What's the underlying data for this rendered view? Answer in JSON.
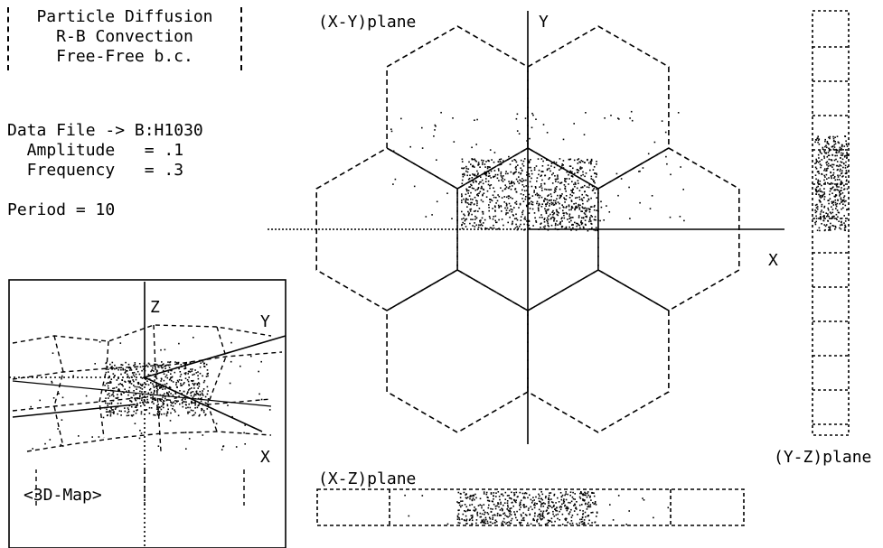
{
  "header": {
    "title": "Particle Diffusion",
    "subtitle": "R-B Convection",
    "boundary": "Free-Free  b.c."
  },
  "info": {
    "data_file": "Data File -> B:H1030",
    "amplitude": "  Amplitude   = .1",
    "frequency": "  Frequency   = .3",
    "period": "Period = 10"
  },
  "panels": {
    "xy_label": "(X-Y)plane",
    "xz_label": "(X-Z)plane",
    "yz_label": "(Y-Z)plane",
    "map_label": "<3D-Map>"
  },
  "axes": {
    "x": "X",
    "y": "Y",
    "z": "Z",
    "map_x": "X",
    "map_y": "Y"
  }
}
